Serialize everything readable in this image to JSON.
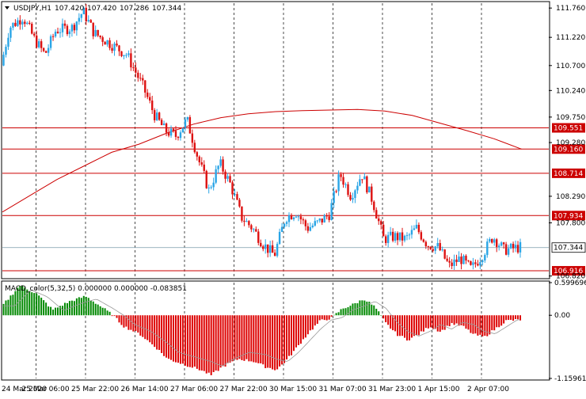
{
  "main_chart": {
    "header": {
      "symbol": "USDJPY,H1",
      "open": "107.420",
      "high": "107.420",
      "low": "107.286",
      "close": "107.344"
    },
    "y_range": [
      106.8,
      111.85
    ],
    "price_labels": [
      "111.760",
      "111.220",
      "110.700",
      "110.240",
      "109.750",
      "109.280",
      "108.290",
      "107.800",
      "106.820"
    ],
    "horizontal_lines": [
      {
        "value": 109.551,
        "label": "109.551",
        "color": "#cc0000"
      },
      {
        "value": 109.16,
        "label": "109.160",
        "color": "#cc0000"
      },
      {
        "value": 108.714,
        "label": "108.714",
        "color": "#cc0000"
      },
      {
        "value": 107.934,
        "label": "107.934",
        "color": "#cc0000"
      },
      {
        "value": 106.916,
        "label": "106.916",
        "color": "#cc0000"
      }
    ],
    "current_price": {
      "value": 107.344,
      "label": "107.344"
    },
    "bull_color": "#2aa5e6",
    "bear_color": "#dd1111",
    "ma_color": "#cc0000",
    "ma_points": [
      [
        0,
        108.0
      ],
      [
        0.05,
        108.3
      ],
      [
        0.1,
        108.6
      ],
      [
        0.15,
        108.85
      ],
      [
        0.2,
        109.1
      ],
      [
        0.25,
        109.25
      ],
      [
        0.3,
        109.45
      ],
      [
        0.35,
        109.62
      ],
      [
        0.4,
        109.74
      ],
      [
        0.45,
        109.81
      ],
      [
        0.5,
        109.85
      ],
      [
        0.55,
        109.87
      ],
      [
        0.6,
        109.88
      ],
      [
        0.65,
        109.89
      ],
      [
        0.7,
        109.86
      ],
      [
        0.75,
        109.78
      ],
      [
        0.8,
        109.64
      ],
      [
        0.85,
        109.5
      ],
      [
        0.9,
        109.35
      ],
      [
        0.95,
        109.16
      ]
    ],
    "price_path": [
      [
        0,
        110.7
      ],
      [
        0.015,
        111.4
      ],
      [
        0.04,
        111.6
      ],
      [
        0.06,
        111.2
      ],
      [
        0.08,
        110.9
      ],
      [
        0.1,
        111.35
      ],
      [
        0.13,
        111.4
      ],
      [
        0.15,
        111.7
      ],
      [
        0.17,
        111.3
      ],
      [
        0.2,
        111.1
      ],
      [
        0.23,
        110.9
      ],
      [
        0.26,
        110.3
      ],
      [
        0.28,
        109.8
      ],
      [
        0.3,
        109.5
      ],
      [
        0.32,
        109.4
      ],
      [
        0.34,
        109.7
      ],
      [
        0.36,
        109.0
      ],
      [
        0.38,
        108.4
      ],
      [
        0.4,
        108.9
      ],
      [
        0.42,
        108.5
      ],
      [
        0.44,
        107.9
      ],
      [
        0.46,
        107.7
      ],
      [
        0.48,
        107.4
      ],
      [
        0.5,
        107.2
      ],
      [
        0.52,
        107.9
      ],
      [
        0.54,
        108.0
      ],
      [
        0.56,
        107.7
      ],
      [
        0.58,
        107.8
      ],
      [
        0.6,
        107.95
      ],
      [
        0.62,
        108.7
      ],
      [
        0.64,
        108.3
      ],
      [
        0.66,
        108.7
      ],
      [
        0.68,
        108.2
      ],
      [
        0.7,
        107.5
      ],
      [
        0.72,
        107.55
      ],
      [
        0.74,
        107.5
      ],
      [
        0.76,
        107.7
      ],
      [
        0.78,
        107.4
      ],
      [
        0.8,
        107.35
      ],
      [
        0.82,
        107.0
      ],
      [
        0.84,
        107.15
      ],
      [
        0.86,
        106.95
      ],
      [
        0.88,
        107.2
      ],
      [
        0.9,
        107.55
      ],
      [
        0.92,
        107.3
      ],
      [
        0.95,
        107.35
      ]
    ]
  },
  "macd": {
    "header": "MACD_color(5,32,5) 0.000000 0.000000 -0.083851",
    "range": [
      -1.1596,
      0.5997
    ],
    "labels": [
      "0.599696",
      "0.00",
      "-1.159612"
    ],
    "pos_color": "#008800",
    "neg_color": "#dd0000",
    "signal_color": "#999999",
    "path": [
      [
        0,
        0.2
      ],
      [
        0.03,
        0.55
      ],
      [
        0.06,
        0.4
      ],
      [
        0.09,
        0.1
      ],
      [
        0.12,
        0.25
      ],
      [
        0.15,
        0.35
      ],
      [
        0.18,
        0.15
      ],
      [
        0.2,
        0.0
      ],
      [
        0.22,
        -0.2
      ],
      [
        0.25,
        -0.35
      ],
      [
        0.28,
        -0.6
      ],
      [
        0.3,
        -0.8
      ],
      [
        0.33,
        -0.9
      ],
      [
        0.36,
        -1.0
      ],
      [
        0.38,
        -1.1
      ],
      [
        0.4,
        -0.95
      ],
      [
        0.43,
        -0.8
      ],
      [
        0.46,
        -0.85
      ],
      [
        0.48,
        -0.95
      ],
      [
        0.5,
        -1.0
      ],
      [
        0.52,
        -0.8
      ],
      [
        0.54,
        -0.55
      ],
      [
        0.56,
        -0.3
      ],
      [
        0.58,
        -0.1
      ],
      [
        0.6,
        -0.05
      ],
      [
        0.62,
        0.12
      ],
      [
        0.64,
        0.2
      ],
      [
        0.66,
        0.3
      ],
      [
        0.68,
        0.15
      ],
      [
        0.7,
        -0.15
      ],
      [
        0.72,
        -0.35
      ],
      [
        0.74,
        -0.45
      ],
      [
        0.76,
        -0.35
      ],
      [
        0.78,
        -0.2
      ],
      [
        0.8,
        -0.3
      ],
      [
        0.82,
        -0.15
      ],
      [
        0.84,
        -0.2
      ],
      [
        0.86,
        -0.35
      ],
      [
        0.88,
        -0.4
      ],
      [
        0.9,
        -0.25
      ],
      [
        0.92,
        -0.1
      ],
      [
        0.95,
        -0.08
      ]
    ]
  },
  "time_axis": {
    "labels": [
      "24 Mar 2020",
      "25 Mar 06:00",
      "25 Mar 22:00",
      "26 Mar 14:00",
      "27 Mar 06:00",
      "27 Mar 22:00",
      "30 Mar 15:00",
      "31 Mar 07:00",
      "31 Mar 23:00",
      "1 Apr 15:00",
      "2 Apr 07:00"
    ]
  },
  "colors": {
    "background": "#ffffff",
    "grid": "#000000",
    "axis_text": "#000000",
    "current_price_box": "#ffffff"
  }
}
